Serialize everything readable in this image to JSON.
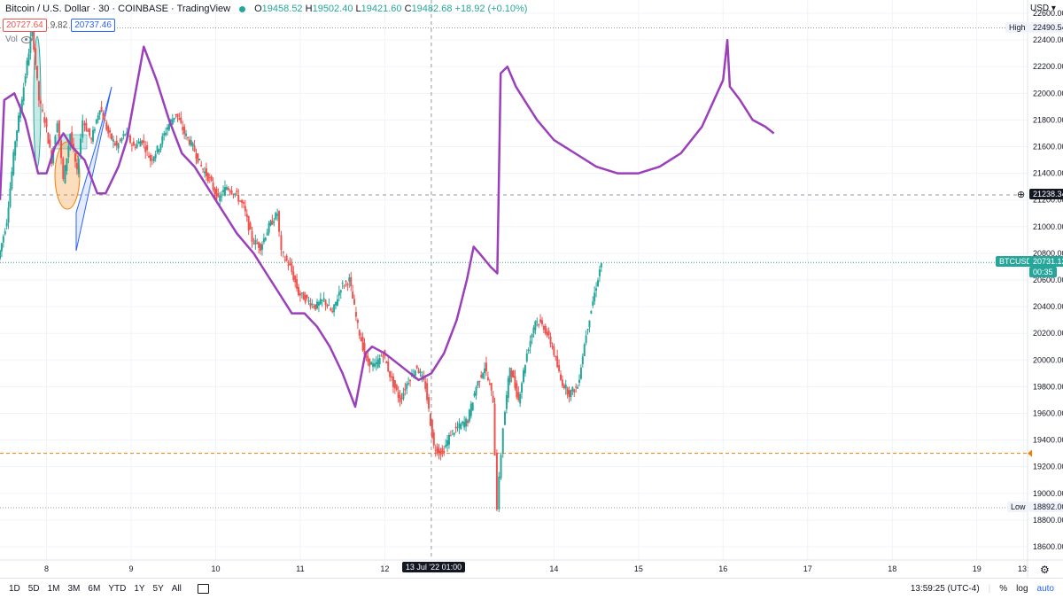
{
  "header": {
    "symbol": "Bitcoin / U.S. Dollar · 30 · COINBASE · TradingView",
    "ohlc": {
      "o_label": "O",
      "o": "19458.52",
      "h_label": "H",
      "h": "19502.40",
      "l_label": "L",
      "l": "19421.60",
      "c_label": "C",
      "c": "19482.68",
      "change": "+18.92 (+0.10%)"
    },
    "bid": "20727.64",
    "spread": "9.82",
    "ask": "20737.46",
    "vol_label": "Vol"
  },
  "currency": "USD",
  "bottom": {
    "ranges": [
      "1D",
      "5D",
      "1M",
      "3M",
      "6M",
      "YTD",
      "1Y",
      "5Y",
      "All"
    ],
    "time": "13:59:25 (UTC-4)",
    "percent": "%",
    "log": "log",
    "auto": "auto"
  },
  "markers": {
    "high_label": "High",
    "high_value": "22490.54",
    "low_label": "Low",
    "low_value": "18892.00",
    "crosshair_value": "21238.34",
    "ticker": "BTCUSD",
    "last_price": "20731.12",
    "countdown": "00:35",
    "crosshair_time": "13 Jul '22   01:00"
  },
  "colors": {
    "up": "#26a69a",
    "down": "#ef5350",
    "drawing": "#9c3fba",
    "grid": "#f0f3fa",
    "accent": "#2962ff",
    "orange": "#f57c00"
  },
  "chart_data": {
    "type": "candlestick",
    "y_ticks": [
      18600,
      18800,
      19000,
      19200,
      19400,
      19600,
      19800,
      20000,
      20200,
      20400,
      20600,
      20800,
      21000,
      21200,
      21400,
      21600,
      21800,
      22000,
      22200,
      22400,
      22600
    ],
    "ylim": [
      18500,
      22700
    ],
    "x_ticks": [
      {
        "label": "8",
        "t": 1.0
      },
      {
        "label": "9",
        "t": 2.0
      },
      {
        "label": "10",
        "t": 3.0
      },
      {
        "label": "11",
        "t": 4.0
      },
      {
        "label": "12",
        "t": 5.0
      },
      {
        "label": "14",
        "t": 7.0
      },
      {
        "label": "15",
        "t": 8.0
      },
      {
        "label": "16",
        "t": 9.0
      },
      {
        "label": "17",
        "t": 10.0
      },
      {
        "label": "18",
        "t": 11.0
      },
      {
        "label": "19",
        "t": 12.0
      },
      {
        "label": "13:",
        "t": 12.55
      }
    ],
    "xlim": [
      0.45,
      12.6
    ],
    "price_path": [
      [
        0.45,
        20760
      ],
      [
        0.55,
        21050
      ],
      [
        0.65,
        21650
      ],
      [
        0.75,
        22050
      ],
      [
        0.85,
        22490
      ],
      [
        0.93,
        21950
      ],
      [
        1.0,
        21800
      ],
      [
        1.08,
        21500
      ],
      [
        1.15,
        21800
      ],
      [
        1.22,
        21350
      ],
      [
        1.3,
        21700
      ],
      [
        1.38,
        21400
      ],
      [
        1.45,
        21800
      ],
      [
        1.55,
        21650
      ],
      [
        1.65,
        21900
      ],
      [
        1.75,
        21700
      ],
      [
        1.85,
        21600
      ],
      [
        1.95,
        21700
      ],
      [
        2.05,
        21600
      ],
      [
        2.15,
        21650
      ],
      [
        2.25,
        21500
      ],
      [
        2.35,
        21600
      ],
      [
        2.45,
        21750
      ],
      [
        2.55,
        21850
      ],
      [
        2.65,
        21700
      ],
      [
        2.75,
        21600
      ],
      [
        2.85,
        21450
      ],
      [
        2.95,
        21350
      ],
      [
        3.05,
        21200
      ],
      [
        3.15,
        21300
      ],
      [
        3.25,
        21250
      ],
      [
        3.35,
        21150
      ],
      [
        3.45,
        20900
      ],
      [
        3.55,
        20850
      ],
      [
        3.65,
        21000
      ],
      [
        3.75,
        21100
      ],
      [
        3.8,
        20800
      ],
      [
        3.9,
        20700
      ],
      [
        4.0,
        20500
      ],
      [
        4.1,
        20450
      ],
      [
        4.2,
        20400
      ],
      [
        4.3,
        20450
      ],
      [
        4.4,
        20350
      ],
      [
        4.5,
        20550
      ],
      [
        4.6,
        20600
      ],
      [
        4.7,
        20250
      ],
      [
        4.8,
        20000
      ],
      [
        4.9,
        19950
      ],
      [
        5.0,
        20050
      ],
      [
        5.1,
        19850
      ],
      [
        5.2,
        19700
      ],
      [
        5.3,
        19850
      ],
      [
        5.4,
        19950
      ],
      [
        5.5,
        19800
      ],
      [
        5.6,
        19350
      ],
      [
        5.7,
        19300
      ],
      [
        5.8,
        19450
      ],
      [
        5.9,
        19500
      ],
      [
        6.0,
        19550
      ],
      [
        6.1,
        19800
      ],
      [
        6.2,
        19950
      ],
      [
        6.3,
        19700
      ],
      [
        6.35,
        18900
      ],
      [
        6.42,
        19500
      ],
      [
        6.5,
        19950
      ],
      [
        6.6,
        19700
      ],
      [
        6.7,
        20050
      ],
      [
        6.8,
        20300
      ],
      [
        6.9,
        20250
      ],
      [
        7.0,
        20100
      ],
      [
        7.1,
        19850
      ],
      [
        7.2,
        19750
      ],
      [
        7.3,
        19800
      ],
      [
        7.4,
        20200
      ],
      [
        7.5,
        20500
      ],
      [
        7.58,
        20731
      ]
    ],
    "drawing_path": [
      [
        0.45,
        21200
      ],
      [
        0.5,
        21950
      ],
      [
        0.62,
        22000
      ],
      [
        0.75,
        21800
      ],
      [
        0.9,
        21400
      ],
      [
        1.0,
        21400
      ],
      [
        1.1,
        21600
      ],
      [
        1.2,
        21700
      ],
      [
        1.3,
        21600
      ],
      [
        1.45,
        21500
      ],
      [
        1.6,
        21250
      ],
      [
        1.7,
        21250
      ],
      [
        1.85,
        21450
      ],
      [
        1.95,
        21650
      ],
      [
        2.15,
        22350
      ],
      [
        2.3,
        22100
      ],
      [
        2.45,
        21800
      ],
      [
        2.6,
        21550
      ],
      [
        2.75,
        21450
      ],
      [
        2.9,
        21300
      ],
      [
        3.05,
        21150
      ],
      [
        3.25,
        20950
      ],
      [
        3.45,
        20800
      ],
      [
        3.6,
        20650
      ],
      [
        3.75,
        20500
      ],
      [
        3.9,
        20350
      ],
      [
        4.05,
        20350
      ],
      [
        4.2,
        20250
      ],
      [
        4.35,
        20100
      ],
      [
        4.5,
        19900
      ],
      [
        4.65,
        19650
      ],
      [
        4.77,
        20050
      ],
      [
        4.85,
        20100
      ],
      [
        5.0,
        20050
      ],
      [
        5.2,
        19950
      ],
      [
        5.4,
        19850
      ],
      [
        5.55,
        19900
      ],
      [
        5.7,
        20050
      ],
      [
        5.85,
        20300
      ],
      [
        5.97,
        20600
      ],
      [
        6.05,
        20850
      ],
      [
        6.12,
        20800
      ],
      [
        6.25,
        20700
      ],
      [
        6.33,
        20650
      ],
      [
        6.37,
        22150
      ],
      [
        6.45,
        22200
      ],
      [
        6.55,
        22050
      ],
      [
        6.7,
        21900
      ],
      [
        6.8,
        21800
      ],
      [
        7.0,
        21650
      ],
      [
        7.25,
        21550
      ],
      [
        7.5,
        21450
      ],
      [
        7.75,
        21400
      ],
      [
        8.0,
        21400
      ],
      [
        8.25,
        21450
      ],
      [
        8.5,
        21550
      ],
      [
        8.75,
        21750
      ],
      [
        9.0,
        22100
      ],
      [
        9.05,
        22400
      ],
      [
        9.08,
        22050
      ],
      [
        9.2,
        21950
      ],
      [
        9.35,
        21800
      ],
      [
        9.5,
        21750
      ],
      [
        9.6,
        21700
      ]
    ]
  }
}
